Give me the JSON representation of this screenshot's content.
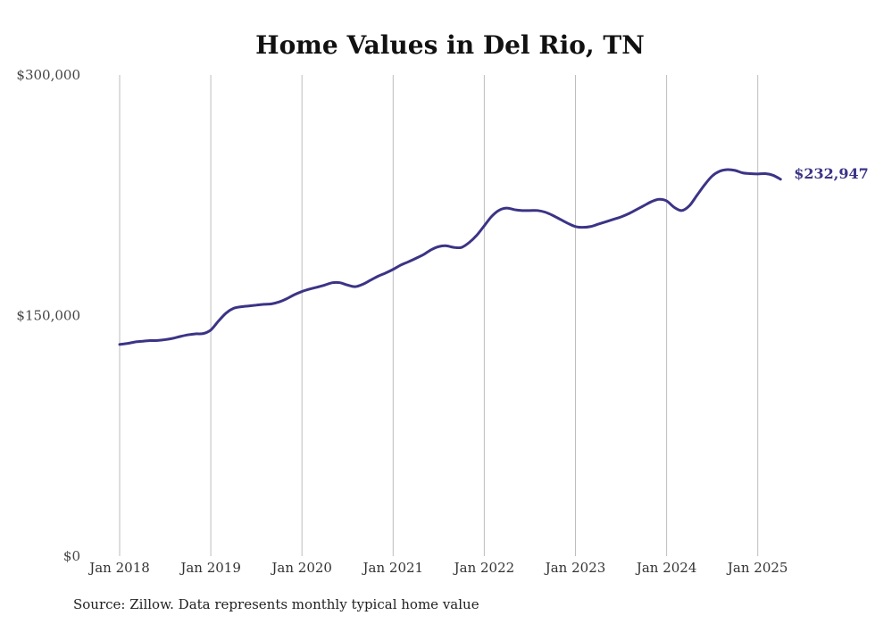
{
  "chart_data": {
    "type": "line",
    "title": "Home Values in Del Rio, TN",
    "xlabel": "",
    "ylabel": "",
    "ylim": [
      0,
      300000
    ],
    "y_ticks": [
      {
        "value": 0,
        "label": "$0"
      },
      {
        "value": 150000,
        "label": "$150,000"
      },
      {
        "value": 300000,
        "label": "$300,000"
      }
    ],
    "x_ticks": [
      "Jan 2018",
      "Jan 2019",
      "Jan 2020",
      "Jan 2021",
      "Jan 2022",
      "Jan 2023",
      "Jan 2024",
      "Jan 2025"
    ],
    "grid": "vertical",
    "line_color": "#3b3486",
    "end_label": "$232,947",
    "series": [
      {
        "x": [
          "2018-01",
          "2018-02",
          "2018-03",
          "2018-04",
          "2018-05",
          "2018-06",
          "2018-07",
          "2018-08",
          "2018-09",
          "2018-10",
          "2018-11",
          "2018-12",
          "2019-01",
          "2019-02",
          "2019-03",
          "2019-04",
          "2019-05",
          "2019-06",
          "2019-07",
          "2019-08",
          "2019-09",
          "2019-10",
          "2019-11",
          "2019-12",
          "2020-01",
          "2020-02",
          "2020-03",
          "2020-04",
          "2020-05",
          "2020-06",
          "2020-07",
          "2020-08",
          "2020-09",
          "2020-10",
          "2020-11",
          "2020-12",
          "2021-01",
          "2021-02",
          "2021-03",
          "2021-04",
          "2021-05",
          "2021-06",
          "2021-07",
          "2021-08",
          "2021-09",
          "2021-10",
          "2021-11",
          "2021-12",
          "2022-01",
          "2022-02",
          "2022-03",
          "2022-04",
          "2022-05",
          "2022-06",
          "2022-07",
          "2022-08",
          "2022-09",
          "2022-10",
          "2022-11",
          "2022-12",
          "2023-01",
          "2023-02",
          "2023-03",
          "2023-04",
          "2023-05",
          "2023-06",
          "2023-07",
          "2023-08",
          "2023-09",
          "2023-10",
          "2023-11",
          "2023-12",
          "2024-01",
          "2024-02",
          "2024-03",
          "2024-04",
          "2024-05",
          "2024-06",
          "2024-07",
          "2024-08",
          "2024-09",
          "2024-10",
          "2024-11",
          "2024-12",
          "2025-01",
          "2025-02",
          "2025-03",
          "2025-04"
        ],
        "y": [
          132000,
          132600,
          133500,
          134000,
          134400,
          134500,
          135000,
          135800,
          137000,
          138000,
          138600,
          138800,
          141000,
          146500,
          151500,
          154500,
          155500,
          156000,
          156500,
          157000,
          157300,
          158500,
          160500,
          163000,
          165000,
          166500,
          167700,
          169000,
          170500,
          170500,
          169000,
          168000,
          169500,
          172000,
          174500,
          176500,
          178800,
          181500,
          183500,
          185700,
          188000,
          191000,
          193000,
          193500,
          192500,
          192500,
          195500,
          200000,
          206000,
          212000,
          215800,
          217000,
          216000,
          215500,
          215500,
          215500,
          214500,
          212500,
          210000,
          207500,
          205500,
          205000,
          205500,
          207000,
          208500,
          210000,
          211500,
          213500,
          216000,
          218500,
          221000,
          222500,
          221500,
          217500,
          215500,
          218500,
          225000,
          231500,
          237000,
          240000,
          241000,
          240500,
          239000,
          238500,
          238300,
          238500,
          237500,
          235000
        ]
      }
    ]
  },
  "source_text": "Source: Zillow. Data represents monthly typical home value"
}
